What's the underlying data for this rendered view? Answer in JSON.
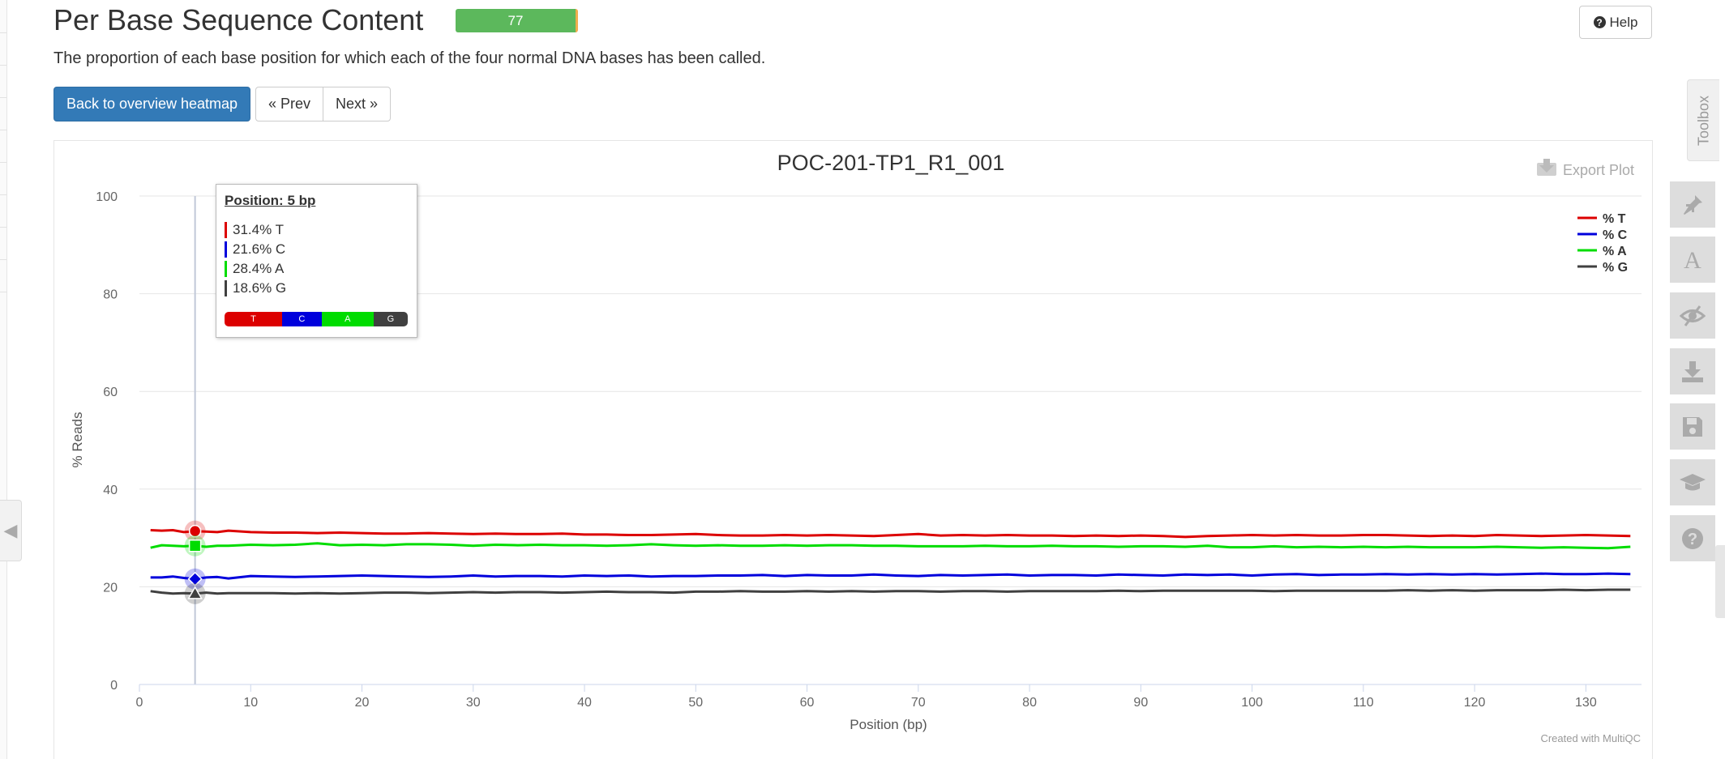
{
  "header": {
    "title": "Per Base Sequence Content",
    "score_badge": "77",
    "help_label": "Help",
    "description": "The proportion of each base position for which each of the four normal DNA bases has been called."
  },
  "nav": {
    "back_label": "Back to overview heatmap",
    "prev_label": "« Prev",
    "next_label": "Next »"
  },
  "plot": {
    "export_label": "Export Plot",
    "credit": "Created with MultiQC"
  },
  "tooltip": {
    "title": "Position: 5 bp",
    "rows": [
      {
        "label": "31.4% T",
        "color": "#dc0000"
      },
      {
        "label": "21.6% C",
        "color": "#0000dc"
      },
      {
        "label": "28.4% A",
        "color": "#00dc00"
      },
      {
        "label": "18.6% G",
        "color": "#404040"
      }
    ],
    "bar": [
      {
        "label": "T",
        "fraction": 0.314,
        "color": "#dc0000"
      },
      {
        "label": "C",
        "fraction": 0.216,
        "color": "#0000dc"
      },
      {
        "label": "A",
        "fraction": 0.284,
        "color": "#00dc00"
      },
      {
        "label": "G",
        "fraction": 0.186,
        "color": "#404040"
      }
    ]
  },
  "toolbox": {
    "tab_label": "Toolbox",
    "tools": [
      {
        "name": "highlight-tool-button",
        "icon": "pin-icon"
      },
      {
        "name": "rename-tool-button",
        "icon": "font-icon"
      },
      {
        "name": "hide-tool-button",
        "icon": "eye-slash-icon"
      },
      {
        "name": "export-tool-button",
        "icon": "download-icon"
      },
      {
        "name": "save-tool-button",
        "icon": "floppy-icon"
      },
      {
        "name": "tutorial-tool-button",
        "icon": "graduation-cap-icon"
      },
      {
        "name": "about-tool-button",
        "icon": "question-icon"
      }
    ]
  },
  "chart_data": {
    "type": "line",
    "title": "POC-201-TP1_R1_001",
    "xlabel": "Position (bp)",
    "ylabel": "% Reads",
    "xlim": [
      0,
      135
    ],
    "ylim": [
      0,
      100
    ],
    "xticks": [
      0,
      10,
      20,
      30,
      40,
      50,
      60,
      70,
      80,
      90,
      100,
      110,
      120,
      130
    ],
    "yticks": [
      0,
      20,
      40,
      60,
      80,
      100
    ],
    "grid": true,
    "legend_position": "top-right",
    "highlight_x": 5,
    "x": [
      1,
      2,
      3,
      4,
      5,
      6,
      7,
      8,
      10,
      12,
      14,
      16,
      18,
      20,
      22,
      24,
      26,
      28,
      30,
      32,
      34,
      36,
      38,
      40,
      42,
      44,
      46,
      48,
      50,
      52,
      54,
      56,
      58,
      60,
      62,
      64,
      66,
      68,
      70,
      72,
      74,
      76,
      78,
      80,
      82,
      84,
      86,
      88,
      90,
      92,
      94,
      96,
      98,
      100,
      102,
      104,
      106,
      108,
      110,
      112,
      114,
      116,
      118,
      120,
      122,
      124,
      126,
      128,
      130,
      132,
      134
    ],
    "series": [
      {
        "name": "% T",
        "color": "#dc0000",
        "marker": "circle",
        "values": [
          31.6,
          31.5,
          31.6,
          31.2,
          31.4,
          31.3,
          31.2,
          31.5,
          31.2,
          31.1,
          31.1,
          31.0,
          31.1,
          31.0,
          30.9,
          30.9,
          31.0,
          30.9,
          30.8,
          30.9,
          30.8,
          30.8,
          30.9,
          30.7,
          30.7,
          30.6,
          30.6,
          30.7,
          30.8,
          30.6,
          30.5,
          30.5,
          30.6,
          30.5,
          30.6,
          30.5,
          30.4,
          30.6,
          30.8,
          30.5,
          30.6,
          30.5,
          30.6,
          30.5,
          30.5,
          30.4,
          30.5,
          30.4,
          30.5,
          30.4,
          30.2,
          30.4,
          30.5,
          30.6,
          30.5,
          30.6,
          30.5,
          30.5,
          30.6,
          30.6,
          30.5,
          30.4,
          30.5,
          30.4,
          30.6,
          30.5,
          30.4,
          30.5,
          30.6,
          30.5,
          30.4
        ]
      },
      {
        "name": "% C",
        "color": "#0000dc",
        "marker": "diamond",
        "values": [
          21.9,
          21.9,
          22.1,
          21.8,
          21.6,
          21.9,
          22.0,
          21.7,
          22.2,
          22.1,
          22.0,
          22.1,
          22.2,
          22.3,
          22.2,
          22.1,
          22.0,
          22.1,
          22.3,
          22.1,
          22.2,
          22.2,
          22.1,
          22.3,
          22.2,
          22.3,
          22.1,
          22.2,
          22.2,
          22.3,
          22.3,
          22.4,
          22.2,
          22.4,
          22.3,
          22.3,
          22.5,
          22.3,
          22.2,
          22.4,
          22.3,
          22.4,
          22.5,
          22.3,
          22.4,
          22.4,
          22.3,
          22.5,
          22.4,
          22.3,
          22.5,
          22.4,
          22.5,
          22.3,
          22.5,
          22.6,
          22.4,
          22.5,
          22.5,
          22.6,
          22.5,
          22.6,
          22.5,
          22.6,
          22.5,
          22.6,
          22.7,
          22.6,
          22.6,
          22.7,
          22.6
        ]
      },
      {
        "name": "% A",
        "color": "#00dc00",
        "marker": "square",
        "values": [
          28.0,
          28.5,
          28.4,
          28.3,
          28.4,
          28.2,
          28.4,
          28.4,
          28.6,
          28.5,
          28.6,
          28.9,
          28.5,
          28.6,
          28.5,
          28.7,
          28.7,
          28.6,
          28.4,
          28.6,
          28.5,
          28.6,
          28.5,
          28.5,
          28.4,
          28.5,
          28.7,
          28.5,
          28.4,
          28.5,
          28.4,
          28.4,
          28.5,
          28.4,
          28.5,
          28.5,
          28.4,
          28.4,
          28.3,
          28.3,
          28.3,
          28.4,
          28.3,
          28.3,
          28.4,
          28.3,
          28.3,
          28.2,
          28.3,
          28.3,
          28.2,
          28.4,
          28.1,
          28.1,
          28.3,
          28.1,
          28.2,
          28.1,
          28.2,
          28.1,
          28.2,
          28.1,
          28.1,
          28.1,
          28.2,
          28.1,
          28.0,
          28.1,
          28.0,
          27.9,
          28.2
        ]
      },
      {
        "name": "% G",
        "color": "#404040",
        "marker": "triangle",
        "values": [
          19.1,
          18.8,
          18.6,
          18.7,
          18.6,
          18.8,
          18.6,
          18.7,
          18.7,
          18.7,
          18.6,
          18.7,
          18.6,
          18.7,
          18.8,
          18.8,
          18.7,
          18.8,
          18.9,
          18.8,
          18.9,
          18.9,
          18.8,
          18.9,
          19.0,
          18.9,
          18.9,
          18.8,
          19.0,
          19.0,
          19.1,
          19.0,
          19.0,
          19.1,
          19.0,
          19.1,
          19.0,
          19.1,
          19.1,
          19.0,
          19.1,
          19.1,
          19.0,
          19.1,
          19.1,
          19.1,
          19.1,
          19.2,
          19.1,
          19.2,
          19.2,
          19.2,
          19.2,
          19.2,
          19.1,
          19.2,
          19.2,
          19.2,
          19.2,
          19.2,
          19.3,
          19.2,
          19.3,
          19.2,
          19.3,
          19.3,
          19.3,
          19.4,
          19.3,
          19.4,
          19.4
        ]
      }
    ]
  }
}
